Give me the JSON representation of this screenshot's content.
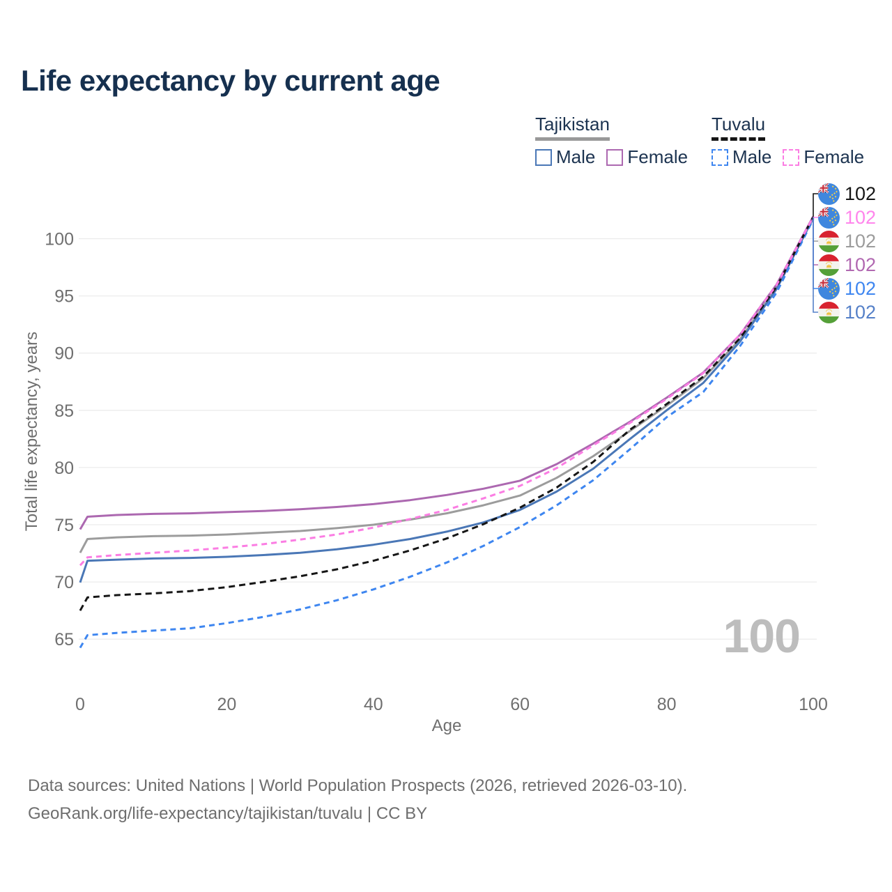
{
  "title": "Life expectancy by current age",
  "legend": {
    "groups": [
      {
        "title": "Tajikistan",
        "style": "solid",
        "items": [
          {
            "label": "Male"
          },
          {
            "label": "Female"
          }
        ]
      },
      {
        "title": "Tuvalu",
        "style": "dashed",
        "items": [
          {
            "label": "Male"
          },
          {
            "label": "Female"
          }
        ]
      }
    ]
  },
  "chart_data": {
    "type": "line",
    "title": "Life expectancy by current age",
    "xlabel": "Age",
    "ylabel": "Total life expectancy, years",
    "xlim": [
      0,
      100
    ],
    "ylim": [
      63,
      103
    ],
    "xticks": [
      0,
      20,
      40,
      60,
      80,
      100
    ],
    "yticks": [
      65,
      70,
      75,
      80,
      85,
      90,
      95,
      100
    ],
    "grid": "horizontal",
    "legend_position": "top-right",
    "x_ages": [
      0,
      1,
      5,
      10,
      15,
      20,
      25,
      30,
      35,
      40,
      45,
      50,
      55,
      60,
      65,
      70,
      75,
      80,
      85,
      90,
      95,
      100
    ],
    "series": [
      {
        "id": "tajikistan-all",
        "country": "Tajikistan",
        "sex": "all",
        "style": "solid",
        "color": "#9C9C9C",
        "dash_array": "",
        "values": [
          72.55,
          73.75,
          73.9,
          74.0,
          74.05,
          74.15,
          74.3,
          74.45,
          74.7,
          75.0,
          75.45,
          76.0,
          76.7,
          77.55,
          79.1,
          81.0,
          83.2,
          85.4,
          87.8,
          91.2,
          95.7,
          101.85
        ],
        "end_value": "102"
      },
      {
        "id": "tajikistan-male",
        "country": "Tajikistan",
        "sex": "male",
        "style": "solid",
        "color": "#4A77B6",
        "dash_array": "",
        "values": [
          69.95,
          71.85,
          71.95,
          72.05,
          72.1,
          72.2,
          72.35,
          72.55,
          72.85,
          73.25,
          73.75,
          74.4,
          75.2,
          76.3,
          77.9,
          79.9,
          82.5,
          85.0,
          87.4,
          91.0,
          95.6,
          101.8
        ],
        "end_value": "102"
      },
      {
        "id": "tajikistan-female",
        "country": "Tajikistan",
        "sex": "female",
        "style": "solid",
        "color": "#AC68B0",
        "dash_array": "",
        "values": [
          74.6,
          75.7,
          75.85,
          75.95,
          76.0,
          76.1,
          76.2,
          76.35,
          76.55,
          76.8,
          77.15,
          77.6,
          78.15,
          78.85,
          80.3,
          82.1,
          84.0,
          86.1,
          88.3,
          91.6,
          96.0,
          101.95
        ],
        "end_value": "102"
      },
      {
        "id": "tuvalu-male",
        "country": "Tuvalu",
        "sex": "male",
        "style": "dashed",
        "color": "#3E86F0",
        "dash_array": "8 6",
        "values": [
          64.25,
          65.35,
          65.55,
          65.75,
          65.95,
          66.4,
          66.95,
          67.6,
          68.4,
          69.35,
          70.45,
          71.7,
          73.15,
          74.8,
          76.7,
          78.9,
          81.6,
          84.4,
          86.6,
          90.6,
          95.3,
          101.7
        ],
        "end_value": "102"
      },
      {
        "id": "tuvalu-all",
        "country": "Tuvalu",
        "sex": "all",
        "style": "dashed",
        "color": "#161616",
        "dash_array": "9 6",
        "values": [
          67.5,
          68.65,
          68.85,
          69.0,
          69.2,
          69.55,
          70.0,
          70.5,
          71.1,
          71.85,
          72.75,
          73.8,
          75.05,
          76.5,
          78.25,
          80.5,
          83.3,
          85.55,
          87.95,
          91.3,
          95.8,
          101.9
        ],
        "end_value": "102"
      },
      {
        "id": "tuvalu-female",
        "country": "Tuvalu",
        "sex": "female",
        "style": "dashed",
        "color": "#FB7DE3",
        "dash_array": "8 6",
        "values": [
          71.45,
          72.15,
          72.35,
          72.55,
          72.75,
          73.0,
          73.3,
          73.7,
          74.15,
          74.75,
          75.5,
          76.3,
          77.3,
          78.4,
          79.95,
          81.95,
          83.9,
          86.0,
          88.25,
          91.6,
          95.95,
          101.9
        ],
        "end_value": "102"
      }
    ]
  },
  "end_labels": [
    {
      "flag": "tuvalu",
      "value": "102",
      "color": "#161616"
    },
    {
      "flag": "tuvalu",
      "value": "102",
      "color": "#FF85EC"
    },
    {
      "flag": "tajikistan",
      "value": "102",
      "color": "#9C9C9C"
    },
    {
      "flag": "tajikistan",
      "value": "102",
      "color": "#B168B1"
    },
    {
      "flag": "tuvalu",
      "value": "102",
      "color": "#3E86F0"
    },
    {
      "flag": "tajikistan",
      "value": "102",
      "color": "#5580C8"
    }
  ],
  "age_watermark": "100",
  "footer": {
    "line1": "Data sources: United Nations | World Population Prospects (2026, retrieved 2026-03-10).",
    "line2": "GeoRank.org/life-expectancy/tajikistan/tuvalu | CC BY"
  },
  "colors": {
    "title_text": "#16304f",
    "legend_text": "#1c3350",
    "axis_text": "#6f6f6f",
    "gridline": "#ececec",
    "watermark": "#bdbdbd",
    "tajikistan_underline": "#999999",
    "tuvalu_underline": "#161616"
  }
}
